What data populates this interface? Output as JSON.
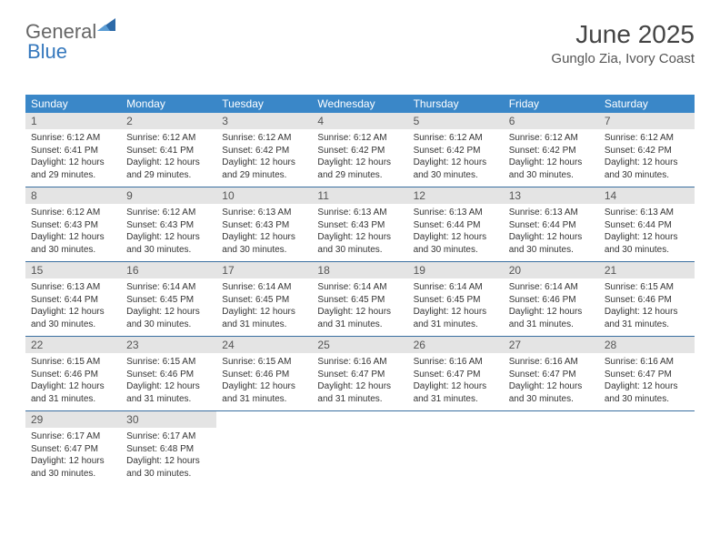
{
  "logo": {
    "text1": "General",
    "text2": "Blue"
  },
  "header": {
    "title": "June 2025",
    "location": "Gunglo Zia, Ivory Coast"
  },
  "colors": {
    "header_bg": "#3a87c8",
    "header_text": "#ffffff",
    "daynum_bg": "#e4e4e4",
    "row_border": "#3a6fa0",
    "logo_accent": "#2d6aa8"
  },
  "weekdays": [
    "Sunday",
    "Monday",
    "Tuesday",
    "Wednesday",
    "Thursday",
    "Friday",
    "Saturday"
  ],
  "weeks": [
    [
      {
        "num": "1",
        "sunrise": "6:12 AM",
        "sunset": "6:41 PM",
        "daylight": "12 hours and 29 minutes."
      },
      {
        "num": "2",
        "sunrise": "6:12 AM",
        "sunset": "6:41 PM",
        "daylight": "12 hours and 29 minutes."
      },
      {
        "num": "3",
        "sunrise": "6:12 AM",
        "sunset": "6:42 PM",
        "daylight": "12 hours and 29 minutes."
      },
      {
        "num": "4",
        "sunrise": "6:12 AM",
        "sunset": "6:42 PM",
        "daylight": "12 hours and 29 minutes."
      },
      {
        "num": "5",
        "sunrise": "6:12 AM",
        "sunset": "6:42 PM",
        "daylight": "12 hours and 30 minutes."
      },
      {
        "num": "6",
        "sunrise": "6:12 AM",
        "sunset": "6:42 PM",
        "daylight": "12 hours and 30 minutes."
      },
      {
        "num": "7",
        "sunrise": "6:12 AM",
        "sunset": "6:42 PM",
        "daylight": "12 hours and 30 minutes."
      }
    ],
    [
      {
        "num": "8",
        "sunrise": "6:12 AM",
        "sunset": "6:43 PM",
        "daylight": "12 hours and 30 minutes."
      },
      {
        "num": "9",
        "sunrise": "6:12 AM",
        "sunset": "6:43 PM",
        "daylight": "12 hours and 30 minutes."
      },
      {
        "num": "10",
        "sunrise": "6:13 AM",
        "sunset": "6:43 PM",
        "daylight": "12 hours and 30 minutes."
      },
      {
        "num": "11",
        "sunrise": "6:13 AM",
        "sunset": "6:43 PM",
        "daylight": "12 hours and 30 minutes."
      },
      {
        "num": "12",
        "sunrise": "6:13 AM",
        "sunset": "6:44 PM",
        "daylight": "12 hours and 30 minutes."
      },
      {
        "num": "13",
        "sunrise": "6:13 AM",
        "sunset": "6:44 PM",
        "daylight": "12 hours and 30 minutes."
      },
      {
        "num": "14",
        "sunrise": "6:13 AM",
        "sunset": "6:44 PM",
        "daylight": "12 hours and 30 minutes."
      }
    ],
    [
      {
        "num": "15",
        "sunrise": "6:13 AM",
        "sunset": "6:44 PM",
        "daylight": "12 hours and 30 minutes."
      },
      {
        "num": "16",
        "sunrise": "6:14 AM",
        "sunset": "6:45 PM",
        "daylight": "12 hours and 30 minutes."
      },
      {
        "num": "17",
        "sunrise": "6:14 AM",
        "sunset": "6:45 PM",
        "daylight": "12 hours and 31 minutes."
      },
      {
        "num": "18",
        "sunrise": "6:14 AM",
        "sunset": "6:45 PM",
        "daylight": "12 hours and 31 minutes."
      },
      {
        "num": "19",
        "sunrise": "6:14 AM",
        "sunset": "6:45 PM",
        "daylight": "12 hours and 31 minutes."
      },
      {
        "num": "20",
        "sunrise": "6:14 AM",
        "sunset": "6:46 PM",
        "daylight": "12 hours and 31 minutes."
      },
      {
        "num": "21",
        "sunrise": "6:15 AM",
        "sunset": "6:46 PM",
        "daylight": "12 hours and 31 minutes."
      }
    ],
    [
      {
        "num": "22",
        "sunrise": "6:15 AM",
        "sunset": "6:46 PM",
        "daylight": "12 hours and 31 minutes."
      },
      {
        "num": "23",
        "sunrise": "6:15 AM",
        "sunset": "6:46 PM",
        "daylight": "12 hours and 31 minutes."
      },
      {
        "num": "24",
        "sunrise": "6:15 AM",
        "sunset": "6:46 PM",
        "daylight": "12 hours and 31 minutes."
      },
      {
        "num": "25",
        "sunrise": "6:16 AM",
        "sunset": "6:47 PM",
        "daylight": "12 hours and 31 minutes."
      },
      {
        "num": "26",
        "sunrise": "6:16 AM",
        "sunset": "6:47 PM",
        "daylight": "12 hours and 31 minutes."
      },
      {
        "num": "27",
        "sunrise": "6:16 AM",
        "sunset": "6:47 PM",
        "daylight": "12 hours and 30 minutes."
      },
      {
        "num": "28",
        "sunrise": "6:16 AM",
        "sunset": "6:47 PM",
        "daylight": "12 hours and 30 minutes."
      }
    ],
    [
      {
        "num": "29",
        "sunrise": "6:17 AM",
        "sunset": "6:47 PM",
        "daylight": "12 hours and 30 minutes."
      },
      {
        "num": "30",
        "sunrise": "6:17 AM",
        "sunset": "6:48 PM",
        "daylight": "12 hours and 30 minutes."
      },
      null,
      null,
      null,
      null,
      null
    ]
  ],
  "labels": {
    "sunrise": "Sunrise: ",
    "sunset": "Sunset: ",
    "daylight": "Daylight: "
  }
}
